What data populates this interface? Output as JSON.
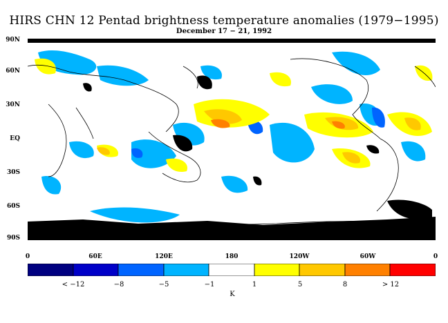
{
  "title": "HIRS CHN 12 Pentad brightness temperature anomalies (1979−1995)",
  "subtitle": "December 17 − 21, 1992",
  "lat_labels": [
    "90N",
    "60N",
    "30N",
    "EQ",
    "30S",
    "60S",
    "90S"
  ],
  "lon_labels": [
    "0",
    "60E",
    "120E",
    "180",
    "120W",
    "60W",
    "0"
  ],
  "colorbar": {
    "labels": [
      "< −12",
      "−8",
      "−5",
      "−1",
      "1",
      "5",
      "8",
      "> 12"
    ],
    "units": "K",
    "colors": [
      "#000080",
      "#0000c8",
      "#0064ff",
      "#00b4ff",
      "#ffffff",
      "#ffff00",
      "#ffc800",
      "#ff8000",
      "#ff0000"
    ]
  },
  "missing_color": "#000000"
}
